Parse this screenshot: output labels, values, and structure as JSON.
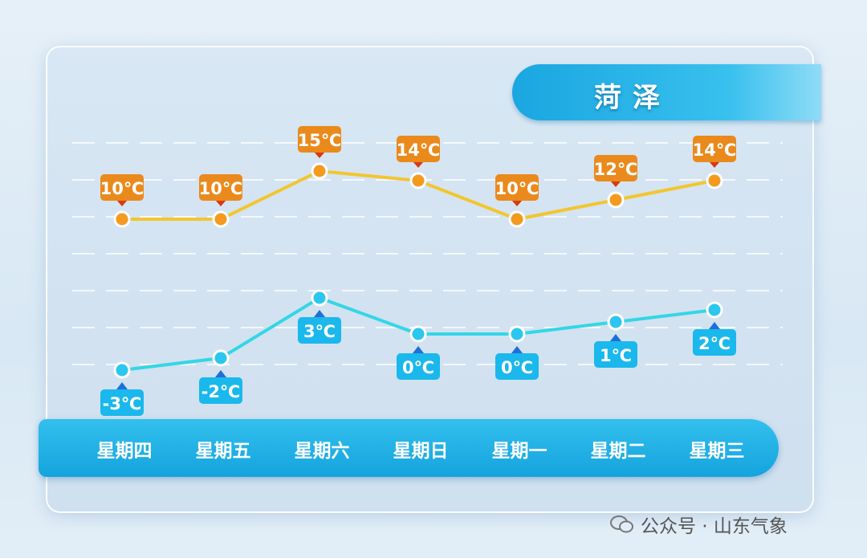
{
  "title": "菏泽",
  "watermark": "公众号 · 山东气象",
  "chart_data": {
    "type": "line",
    "categories": [
      "星期四",
      "星期五",
      "星期六",
      "星期日",
      "星期一",
      "星期二",
      "星期三"
    ],
    "unit": "℃",
    "series": [
      {
        "key": "high",
        "values": [
          10,
          10,
          15,
          14,
          10,
          12,
          14
        ],
        "color": "#f2c62e",
        "label_color": "#ea8a1c"
      },
      {
        "key": "low",
        "values": [
          -3,
          -2,
          3,
          0,
          0,
          1,
          2
        ],
        "color": "#34d6e6",
        "label_color": "#1ab8ec"
      }
    ],
    "grid": true,
    "legend": "none"
  }
}
